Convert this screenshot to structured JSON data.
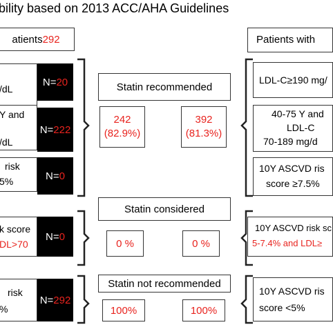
{
  "title": "bility based on 2013 ACC/AHA Guidelines",
  "left": {
    "header": {
      "text": "atients ",
      "count": "292"
    },
    "rows": [
      {
        "lines": [
          "/dL"
        ],
        "n_label": "N=",
        "n_value": "20"
      },
      {
        "lines": [
          "Y and",
          "",
          "/dL"
        ],
        "n_label": "N=",
        "n_value": "222"
      },
      {
        "lines": [
          "risk",
          "5%"
        ],
        "n_label": "N=",
        "n_value": "0"
      },
      {
        "lines": [
          "k score",
          "DL>70"
        ],
        "n_label": "N=",
        "n_value": "0"
      },
      {
        "lines": [
          "risk",
          "%"
        ],
        "n_label": "N=",
        "n_value": "292"
      }
    ]
  },
  "middle": {
    "statin_recommended": "Statin recommended",
    "recommended_left": [
      "242",
      "(82.9%)"
    ],
    "recommended_right": [
      "392",
      "(81.3%)"
    ],
    "statin_considered": "Statin considered",
    "considered_left": "0 %",
    "considered_right": "0 %",
    "statin_not_recommended": "Statin not recommended",
    "not_recommended_left": "100%",
    "not_recommended_right": "100%"
  },
  "right": {
    "header": "Patients with",
    "rows": [
      {
        "lines": [
          "LDL-C≥190 mg/"
        ]
      },
      {
        "lines": [
          "40-75 Y and",
          "LDL-C",
          "70-189 mg/d"
        ]
      },
      {
        "lines": [
          "10Y ASCVD ris",
          "score ≥7.5%"
        ]
      },
      {
        "lines": [
          "10Y ASCVD risk sc",
          "5-7.4% and LDL≥"
        ]
      },
      {
        "lines": [
          "10Y ASCVD ris",
          "score <5%"
        ]
      }
    ]
  },
  "colors": {
    "accent": "#e8231e",
    "black": "#000000",
    "border": "#333333"
  }
}
